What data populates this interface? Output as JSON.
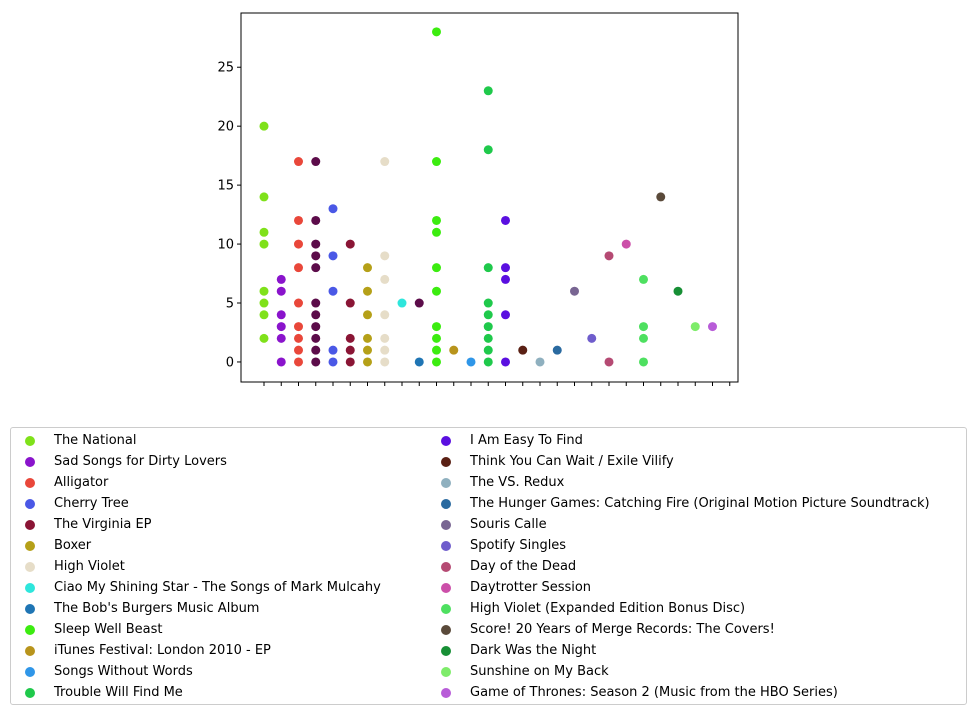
{
  "chart_data": {
    "type": "scatter",
    "ylim": [
      -1.7,
      29.6
    ],
    "yticks": [
      0,
      5,
      10,
      15,
      20,
      25
    ],
    "x_positions": 28,
    "xlabel": "",
    "ylabel": "",
    "title": "",
    "legend_position": "bottom",
    "series": [
      {
        "name": "The National",
        "color": "#7fe11a",
        "points": [
          [
            1,
            20
          ],
          [
            1,
            14
          ],
          [
            1,
            11
          ],
          [
            1,
            10
          ],
          [
            1,
            6
          ],
          [
            1,
            5
          ],
          [
            1,
            4
          ],
          [
            1,
            2
          ]
        ]
      },
      {
        "name": "Sad Songs for Dirty Lovers",
        "color": "#8a14cc",
        "points": [
          [
            2,
            7
          ],
          [
            2,
            6
          ],
          [
            2,
            4
          ],
          [
            2,
            3
          ],
          [
            2,
            2
          ],
          [
            2,
            0
          ]
        ]
      },
      {
        "name": "Alligator",
        "color": "#e9473a",
        "points": [
          [
            3,
            17
          ],
          [
            3,
            12
          ],
          [
            3,
            10
          ],
          [
            3,
            8
          ],
          [
            3,
            5
          ],
          [
            3,
            3
          ],
          [
            3,
            2
          ],
          [
            3,
            1
          ],
          [
            3,
            0
          ]
        ]
      },
      {
        "name": "Cherry Tree",
        "color": "#4a58e6",
        "points": [
          [
            5,
            13
          ],
          [
            5,
            9
          ],
          [
            5,
            6
          ],
          [
            5,
            1
          ],
          [
            5,
            0
          ]
        ]
      },
      {
        "name": "The Virginia EP",
        "color": "#8a1535",
        "points": [
          [
            6,
            10
          ],
          [
            6,
            5
          ],
          [
            6,
            2
          ],
          [
            6,
            1
          ],
          [
            6,
            0
          ]
        ]
      },
      {
        "name": "Boxer",
        "color": "#b5a018",
        "points": [
          [
            7,
            8
          ],
          [
            7,
            6
          ],
          [
            7,
            4
          ],
          [
            7,
            2
          ],
          [
            7,
            1
          ],
          [
            7,
            0
          ]
        ]
      },
      {
        "name": "High Violet",
        "color": "#e6ddc8",
        "points": [
          [
            8,
            17
          ],
          [
            8,
            9
          ],
          [
            8,
            7
          ],
          [
            8,
            4
          ],
          [
            8,
            2
          ],
          [
            8,
            1
          ],
          [
            8,
            0
          ]
        ]
      },
      {
        "name": "Ciao My Shining Star - The Songs of Mark Mulcahy",
        "color": "#2ee6dc",
        "points": [
          [
            9,
            5
          ]
        ]
      },
      {
        "name": "The Bob's Burgers Music Album",
        "color": "#1f75b4",
        "points": [
          [
            10,
            0
          ]
        ]
      },
      {
        "name": "Sleep Well Beast",
        "color": "#3cec10",
        "points": [
          [
            11,
            28
          ],
          [
            11,
            17
          ],
          [
            11,
            12
          ],
          [
            11,
            11
          ],
          [
            11,
            8
          ],
          [
            11,
            6
          ],
          [
            11,
            3
          ],
          [
            11,
            2
          ],
          [
            11,
            1
          ],
          [
            11,
            0
          ]
        ]
      },
      {
        "name": "iTunes Festival: London 2010 - EP",
        "color": "#b8941c",
        "points": [
          [
            12,
            1
          ]
        ]
      },
      {
        "name": "Songs Without Words",
        "color": "#2f96e8",
        "points": [
          [
            13,
            0
          ]
        ]
      },
      {
        "name": "Trouble Will Find Me",
        "color": "#1fc94b",
        "points": [
          [
            14,
            23
          ],
          [
            14,
            18
          ],
          [
            14,
            8
          ],
          [
            14,
            5
          ],
          [
            14,
            4
          ],
          [
            14,
            3
          ],
          [
            14,
            2
          ],
          [
            14,
            1
          ],
          [
            14,
            0
          ]
        ]
      },
      {
        "name": "I Am Easy To Find",
        "color": "#5a0fe0",
        "points": [
          [
            15,
            12
          ],
          [
            15,
            8
          ],
          [
            15,
            7
          ],
          [
            15,
            4
          ],
          [
            15,
            0
          ]
        ]
      },
      {
        "name": "Think You Can Wait / Exile Vilify",
        "color": "#5a2014",
        "points": [
          [
            16,
            1
          ]
        ]
      },
      {
        "name": "The VS. Redux",
        "color": "#8fb0bf",
        "points": [
          [
            17,
            0
          ]
        ]
      },
      {
        "name": "The Hunger Games: Catching Fire (Original Motion Picture Soundtrack)",
        "color": "#2a6aa0",
        "points": [
          [
            18,
            1
          ]
        ]
      },
      {
        "name": "Souris Calle",
        "color": "#786592",
        "points": [
          [
            19,
            6
          ]
        ]
      },
      {
        "name": "Spotify Singles",
        "color": "#6f5dcc",
        "points": [
          [
            20,
            2
          ]
        ]
      },
      {
        "name": "Day of the Dead",
        "color": "#b54a73",
        "points": [
          [
            21,
            9
          ],
          [
            21,
            0
          ]
        ]
      },
      {
        "name": "Daytrotter Session",
        "color": "#cc4fa9",
        "points": [
          [
            22,
            10
          ]
        ]
      },
      {
        "name": "High Violet (Expanded Edition Bonus Disc)",
        "color": "#4ee060",
        "points": [
          [
            23,
            7
          ],
          [
            23,
            3
          ],
          [
            23,
            2
          ],
          [
            23,
            0
          ]
        ]
      },
      {
        "name": "Score! 20 Years of Merge Records: The Covers!",
        "color": "#5a4a3a",
        "points": [
          [
            24,
            14
          ]
        ]
      },
      {
        "name": "Dark Was the Night",
        "color": "#178f35",
        "points": [
          [
            25,
            6
          ]
        ]
      },
      {
        "name": "Sunshine on My Back",
        "color": "#7eec6a",
        "points": [
          [
            26,
            3
          ]
        ]
      },
      {
        "name": "Game of Thrones: Season 2 (Music from the HBO Series)",
        "color": "#b85cd8",
        "points": [
          [
            27,
            3
          ]
        ]
      }
    ],
    "extra_points": [
      {
        "color": "#5c0c4a",
        "points": [
          [
            4,
            17
          ],
          [
            4,
            12
          ],
          [
            4,
            10
          ],
          [
            4,
            9
          ],
          [
            4,
            8
          ],
          [
            4,
            5
          ],
          [
            4,
            4
          ],
          [
            4,
            3
          ],
          [
            4,
            2
          ],
          [
            4,
            1
          ],
          [
            4,
            0
          ],
          [
            10,
            5
          ]
        ]
      }
    ]
  }
}
